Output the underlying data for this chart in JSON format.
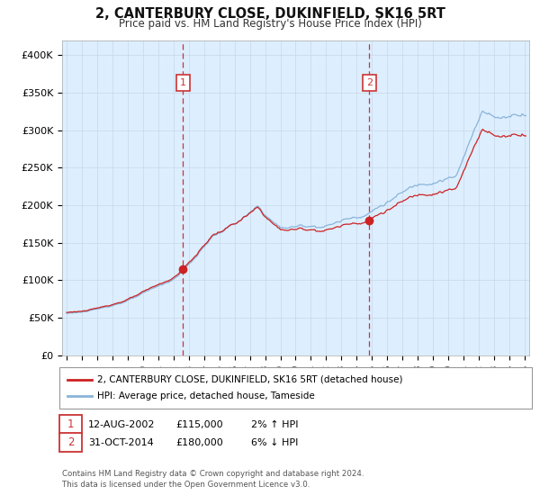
{
  "title": "2, CANTERBURY CLOSE, DUKINFIELD, SK16 5RT",
  "subtitle": "Price paid vs. HM Land Registry's House Price Index (HPI)",
  "background_color": "#ffffff",
  "plot_bg_color": "#ddeeff",
  "grid_color": "#c8d8e8",
  "legend_line1": "2, CANTERBURY CLOSE, DUKINFIELD, SK16 5RT (detached house)",
  "legend_line2": "HPI: Average price, detached house, Tameside",
  "footer": "Contains HM Land Registry data © Crown copyright and database right 2024.\nThis data is licensed under the Open Government Licence v3.0.",
  "sale1_date": "12-AUG-2002",
  "sale1_price": 115000,
  "sale1_year": 2002.617,
  "sale2_date": "31-OCT-2014",
  "sale2_price": 180000,
  "sale2_year": 2014.833,
  "sale1_hpi_pct": "2% ↑ HPI",
  "sale2_hpi_pct": "6% ↓ HPI",
  "ylim_max": 420000,
  "yticks": [
    0,
    50000,
    100000,
    150000,
    200000,
    250000,
    300000,
    350000,
    400000
  ],
  "ytick_labels": [
    "£0",
    "£50K",
    "£100K",
    "£150K",
    "£200K",
    "£250K",
    "£300K",
    "£350K",
    "£400K"
  ],
  "hpi_color": "#8ab4d8",
  "property_color": "#cc2222",
  "vline_color": "#cc3333",
  "marker_color": "#cc2222",
  "xlim_min": 1994.7,
  "xlim_max": 2025.3
}
